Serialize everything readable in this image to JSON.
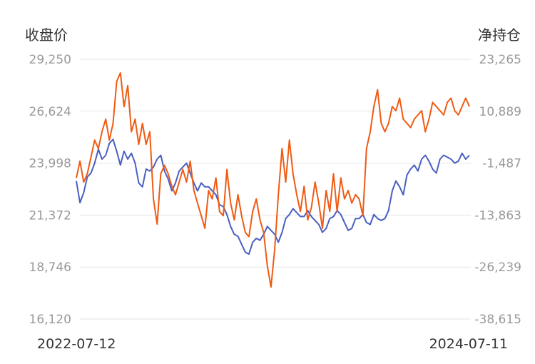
{
  "chart_data": {
    "type": "line",
    "title": "",
    "y_left_label": "收盘价",
    "y_right_label": "净持仓",
    "y_left_ticks": [
      "29,250",
      "26,624",
      "23,998",
      "21,372",
      "18,746",
      "16,120"
    ],
    "y_right_ticks": [
      "23,265",
      "10,889",
      "-1,487",
      "-13,863",
      "-26,239",
      "-38,615"
    ],
    "y_left_range": [
      16120,
      29250
    ],
    "y_right_range": [
      -38615,
      23265
    ],
    "x_tick_labels": [
      "2022-07-12",
      "2024-07-11"
    ],
    "x_range": [
      "2022-07-12",
      "2024-07-11"
    ],
    "grid": true,
    "series": [
      {
        "axis": "left",
        "color": "#4a5fc1",
        "values": [
          23100,
          22000,
          22500,
          23300,
          23500,
          24000,
          24700,
          24200,
          24400,
          25000,
          25200,
          24600,
          23900,
          24600,
          24200,
          24500,
          24000,
          23000,
          22800,
          23700,
          23600,
          23800,
          24200,
          24400,
          23600,
          23200,
          22600,
          23000,
          23600,
          23800,
          24000,
          23500,
          23000,
          22600,
          23000,
          22800,
          22800,
          22600,
          22400,
          21900,
          21800,
          21400,
          20800,
          20400,
          20300,
          19900,
          19500,
          19400,
          20000,
          20200,
          20100,
          20400,
          20800,
          20600,
          20400,
          20000,
          20500,
          21200,
          21400,
          21700,
          21500,
          21300,
          21300,
          21600,
          21300,
          21100,
          20900,
          20500,
          20700,
          21200,
          21300,
          21600,
          21400,
          21000,
          20600,
          20700,
          21200,
          21200,
          21400,
          21000,
          20900,
          21400,
          21200,
          21100,
          21200,
          21600,
          22600,
          23100,
          22800,
          22400,
          23400,
          23700,
          23900,
          23600,
          24200,
          24400,
          24100,
          23700,
          23500,
          24200,
          24400,
          24300,
          24200,
          24000,
          24100,
          24500,
          24200,
          24400
        ]
      },
      {
        "axis": "right",
        "color": "#f05a12",
        "values": [
          -5000,
          -1000,
          -6000,
          -4000,
          0,
          4000,
          2000,
          6000,
          9000,
          4000,
          8000,
          18000,
          20000,
          12000,
          17000,
          6000,
          9000,
          3000,
          8000,
          3000,
          6000,
          -10000,
          -16000,
          -4000,
          -2000,
          -4000,
          -7000,
          -9000,
          -6000,
          -3000,
          -6000,
          -1000,
          -8000,
          -11000,
          -14000,
          -17000,
          -8000,
          -10000,
          -5000,
          -13000,
          -14000,
          -3000,
          -11000,
          -15000,
          -9000,
          -14000,
          -18000,
          -19000,
          -13000,
          -10000,
          -15000,
          -18000,
          -26000,
          -31000,
          -22000,
          -9000,
          2000,
          -6000,
          4000,
          -4000,
          -9000,
          -13000,
          -7000,
          -15000,
          -12000,
          -6000,
          -11000,
          -17000,
          -8000,
          -13000,
          -4000,
          -13000,
          -5000,
          -10000,
          -8000,
          -11000,
          -9000,
          -10000,
          -14000,
          2000,
          6000,
          12000,
          16000,
          8000,
          6000,
          8000,
          12000,
          11000,
          14000,
          9000,
          8000,
          7000,
          9000,
          10000,
          11000,
          6000,
          9000,
          13000,
          12000,
          11000,
          10000,
          13000,
          14000,
          11000,
          10000,
          12000,
          14000,
          12000
        ]
      }
    ]
  }
}
